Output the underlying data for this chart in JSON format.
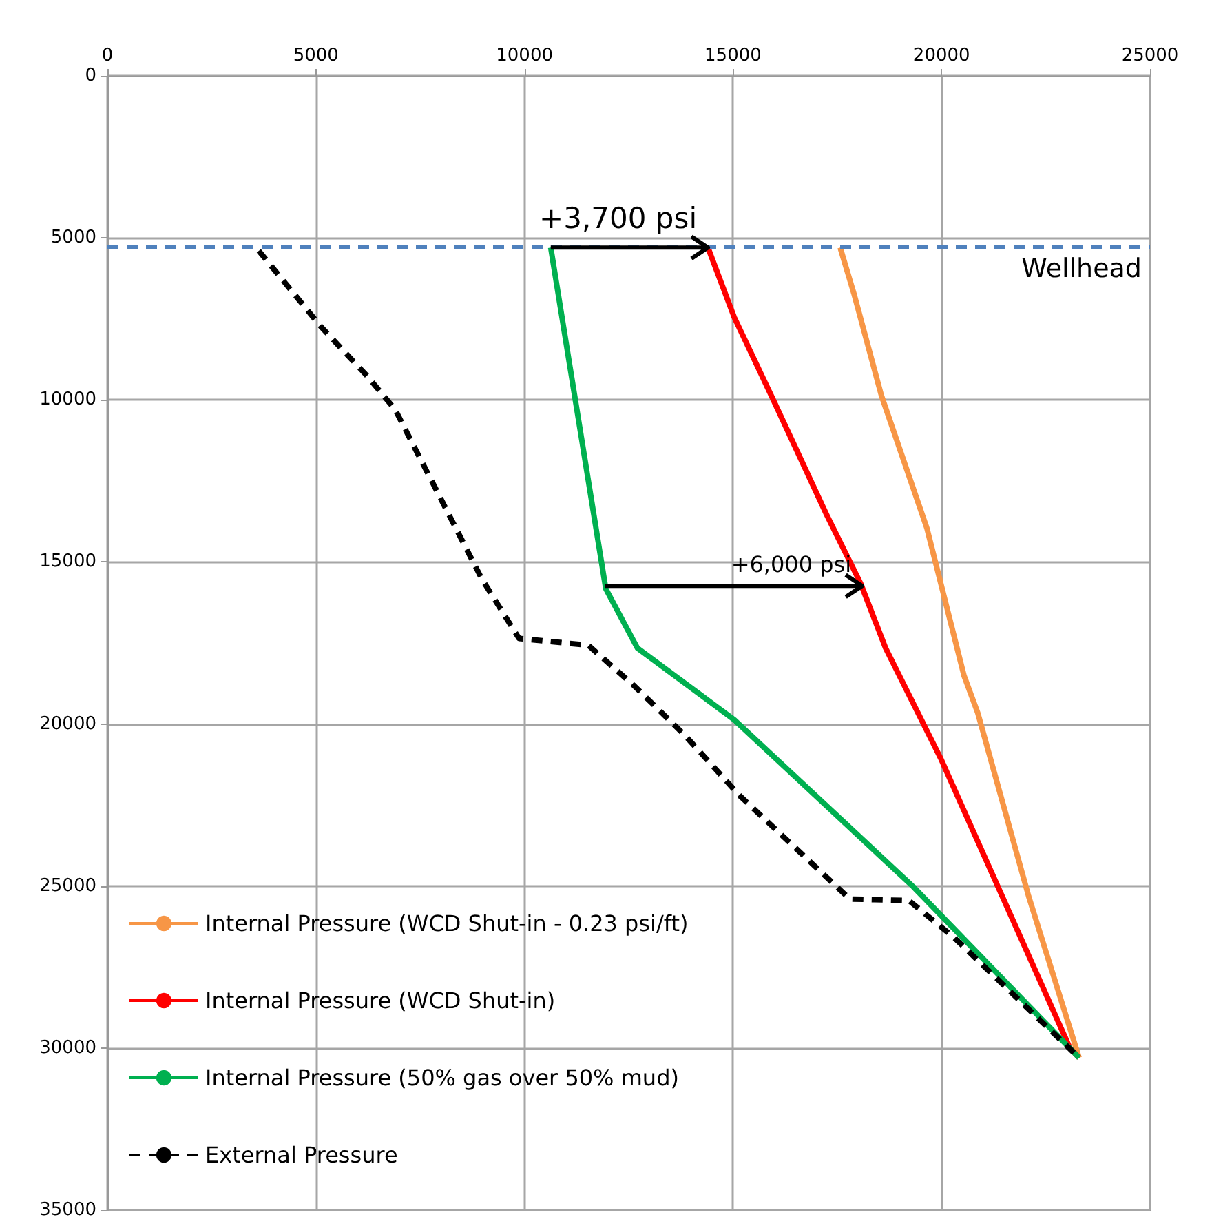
{
  "chart_data": {
    "type": "line",
    "xlim": [
      0,
      25000
    ],
    "xticks": [
      0,
      5000,
      10000,
      15000,
      20000,
      25000
    ],
    "ylim": [
      35000,
      0
    ],
    "yticks": [
      0,
      5000,
      10000,
      15000,
      20000,
      25000,
      30000,
      35000
    ],
    "grid": true,
    "legend": "bottom left",
    "marker": "none",
    "series": [
      {
        "name": "Internal Pressure (WCD Shut-in - 0.23 psi/ft)",
        "color": "#f79646",
        "line_style": "solid",
        "x": [
          17570,
          17900,
          18560,
          19650,
          20540,
          20870,
          22090,
          23300
        ],
        "values": [
          5300,
          6720,
          9870,
          13960,
          18510,
          19660,
          25320,
          30300
        ]
      },
      {
        "name": "Internal Pressure (WCD Shut-in)",
        "color": "#ff0000",
        "line_style": "solid",
        "x": [
          14400,
          15030,
          15920,
          17240,
          18060,
          18660,
          19980,
          23080,
          23300
        ],
        "values": [
          5300,
          7450,
          9870,
          13530,
          15660,
          17660,
          21060,
          30000,
          30300
        ]
      },
      {
        "name": "Internal Pressure (50% gas over 50% mud)",
        "color": "#00b050",
        "line_style": "solid",
        "x": [
          10630,
          11950,
          12710,
          15030,
          19320,
          23300
        ],
        "values": [
          5300,
          15830,
          17660,
          19870,
          25020,
          30300
        ]
      },
      {
        "name": "External Pressure",
        "color": "#000000",
        "line_style": "dashed",
        "x": [
          3630,
          5120,
          6240,
          6900,
          8980,
          9870,
          11530,
          12620,
          13840,
          15160,
          17800,
          19220,
          20310,
          23300
        ],
        "values": [
          5400,
          7740,
          9280,
          10300,
          15530,
          17360,
          17570,
          18810,
          20340,
          22210,
          25400,
          25450,
          26600,
          30300
        ]
      }
    ],
    "ref_lines": [
      {
        "axis": "y",
        "value": 5300,
        "label": "Wellhead",
        "color": "#4f81bd",
        "line_style": "dashed"
      }
    ],
    "annotations": [
      {
        "text": "+3,700 psi",
        "x": 14400,
        "y": 5300
      },
      {
        "text": "+6,000 psi",
        "x": 18100,
        "y": 15740
      }
    ]
  }
}
